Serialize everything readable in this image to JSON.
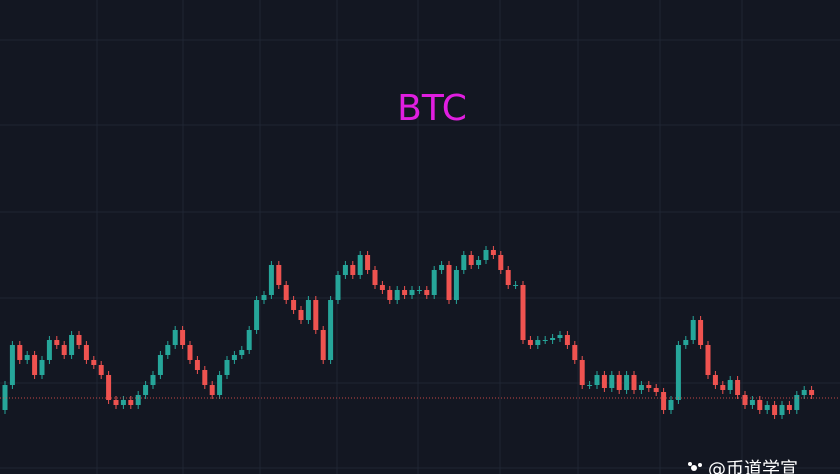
{
  "chart_data": {
    "type": "candlestick",
    "title": "BTC",
    "watermark": "@币道学宣",
    "open": [
      64,
      89,
      129,
      114,
      119,
      99,
      114,
      134,
      129,
      119,
      139,
      129,
      114,
      109,
      99,
      74,
      69,
      74,
      69,
      79,
      89,
      99,
      119,
      129,
      144,
      129,
      114,
      104,
      89,
      79,
      99,
      114,
      119,
      124,
      144,
      174,
      179,
      209,
      189,
      174,
      164,
      154,
      174,
      144,
      114,
      174,
      199,
      209,
      199,
      219,
      204,
      189,
      184,
      174,
      184,
      179,
      184,
      184,
      179,
      204,
      209,
      174,
      204,
      219,
      209,
      214,
      224,
      219,
      204,
      189,
      189,
      134,
      129,
      134,
      134,
      136,
      139,
      129,
      114,
      89,
      89,
      99,
      86,
      99,
      84,
      99,
      84,
      89,
      86,
      82,
      64,
      74,
      129,
      134,
      154,
      129,
      99,
      89,
      84,
      94,
      79,
      69,
      74,
      64,
      69,
      59,
      69,
      64,
      79,
      84
    ],
    "high": [
      93,
      133,
      133,
      123,
      123,
      118,
      138,
      138,
      133,
      143,
      143,
      133,
      118,
      113,
      103,
      78,
      78,
      78,
      83,
      93,
      103,
      123,
      133,
      148,
      148,
      133,
      118,
      108,
      93,
      103,
      118,
      123,
      128,
      148,
      178,
      183,
      213,
      213,
      193,
      178,
      168,
      178,
      178,
      148,
      178,
      203,
      213,
      213,
      223,
      223,
      208,
      193,
      188,
      188,
      188,
      188,
      188,
      188,
      208,
      213,
      213,
      208,
      223,
      223,
      218,
      228,
      228,
      223,
      208,
      193,
      193,
      138,
      138,
      138,
      140,
      143,
      143,
      133,
      118,
      93,
      103,
      103,
      103,
      103,
      103,
      103,
      93,
      93,
      90,
      86,
      78,
      133,
      138,
      158,
      158,
      133,
      103,
      93,
      98,
      98,
      83,
      78,
      78,
      73,
      73,
      73,
      73,
      83,
      88,
      88
    ],
    "low": [
      60,
      85,
      110,
      110,
      95,
      95,
      110,
      125,
      115,
      115,
      125,
      110,
      105,
      95,
      70,
      65,
      65,
      65,
      65,
      75,
      85,
      95,
      115,
      125,
      125,
      110,
      100,
      85,
      75,
      75,
      95,
      110,
      115,
      120,
      140,
      170,
      175,
      185,
      170,
      160,
      150,
      150,
      140,
      110,
      110,
      170,
      195,
      195,
      195,
      200,
      185,
      180,
      170,
      170,
      175,
      175,
      180,
      175,
      175,
      200,
      170,
      170,
      200,
      205,
      205,
      210,
      215,
      200,
      185,
      185,
      130,
      125,
      125,
      130,
      130,
      132,
      125,
      110,
      85,
      85,
      85,
      82,
      82,
      80,
      80,
      80,
      80,
      82,
      78,
      60,
      60,
      70,
      125,
      130,
      125,
      95,
      85,
      80,
      80,
      75,
      65,
      65,
      60,
      60,
      55,
      55,
      60,
      60,
      75,
      75
    ],
    "close": [
      89,
      129,
      114,
      119,
      99,
      114,
      134,
      129,
      119,
      139,
      129,
      114,
      109,
      99,
      74,
      69,
      74,
      69,
      79,
      89,
      99,
      119,
      129,
      144,
      129,
      114,
      104,
      89,
      79,
      99,
      114,
      119,
      124,
      144,
      174,
      179,
      209,
      189,
      174,
      164,
      154,
      174,
      144,
      114,
      174,
      199,
      209,
      199,
      219,
      204,
      189,
      184,
      174,
      184,
      179,
      184,
      184,
      179,
      204,
      209,
      174,
      204,
      219,
      209,
      214,
      224,
      219,
      204,
      189,
      189,
      134,
      129,
      134,
      134,
      136,
      139,
      129,
      114,
      89,
      89,
      99,
      86,
      99,
      84,
      99,
      84,
      89,
      86,
      82,
      64,
      74,
      129,
      134,
      154,
      129,
      99,
      89,
      84,
      94,
      79,
      69,
      74,
      64,
      69,
      59,
      69,
      64,
      79,
      84,
      79
    ],
    "last_price": 76,
    "ylim": [
      0,
      474
    ],
    "up_color": "#26a69a",
    "down_color": "#ef5350",
    "title_color": "#e01ee0",
    "background": "#131722"
  }
}
